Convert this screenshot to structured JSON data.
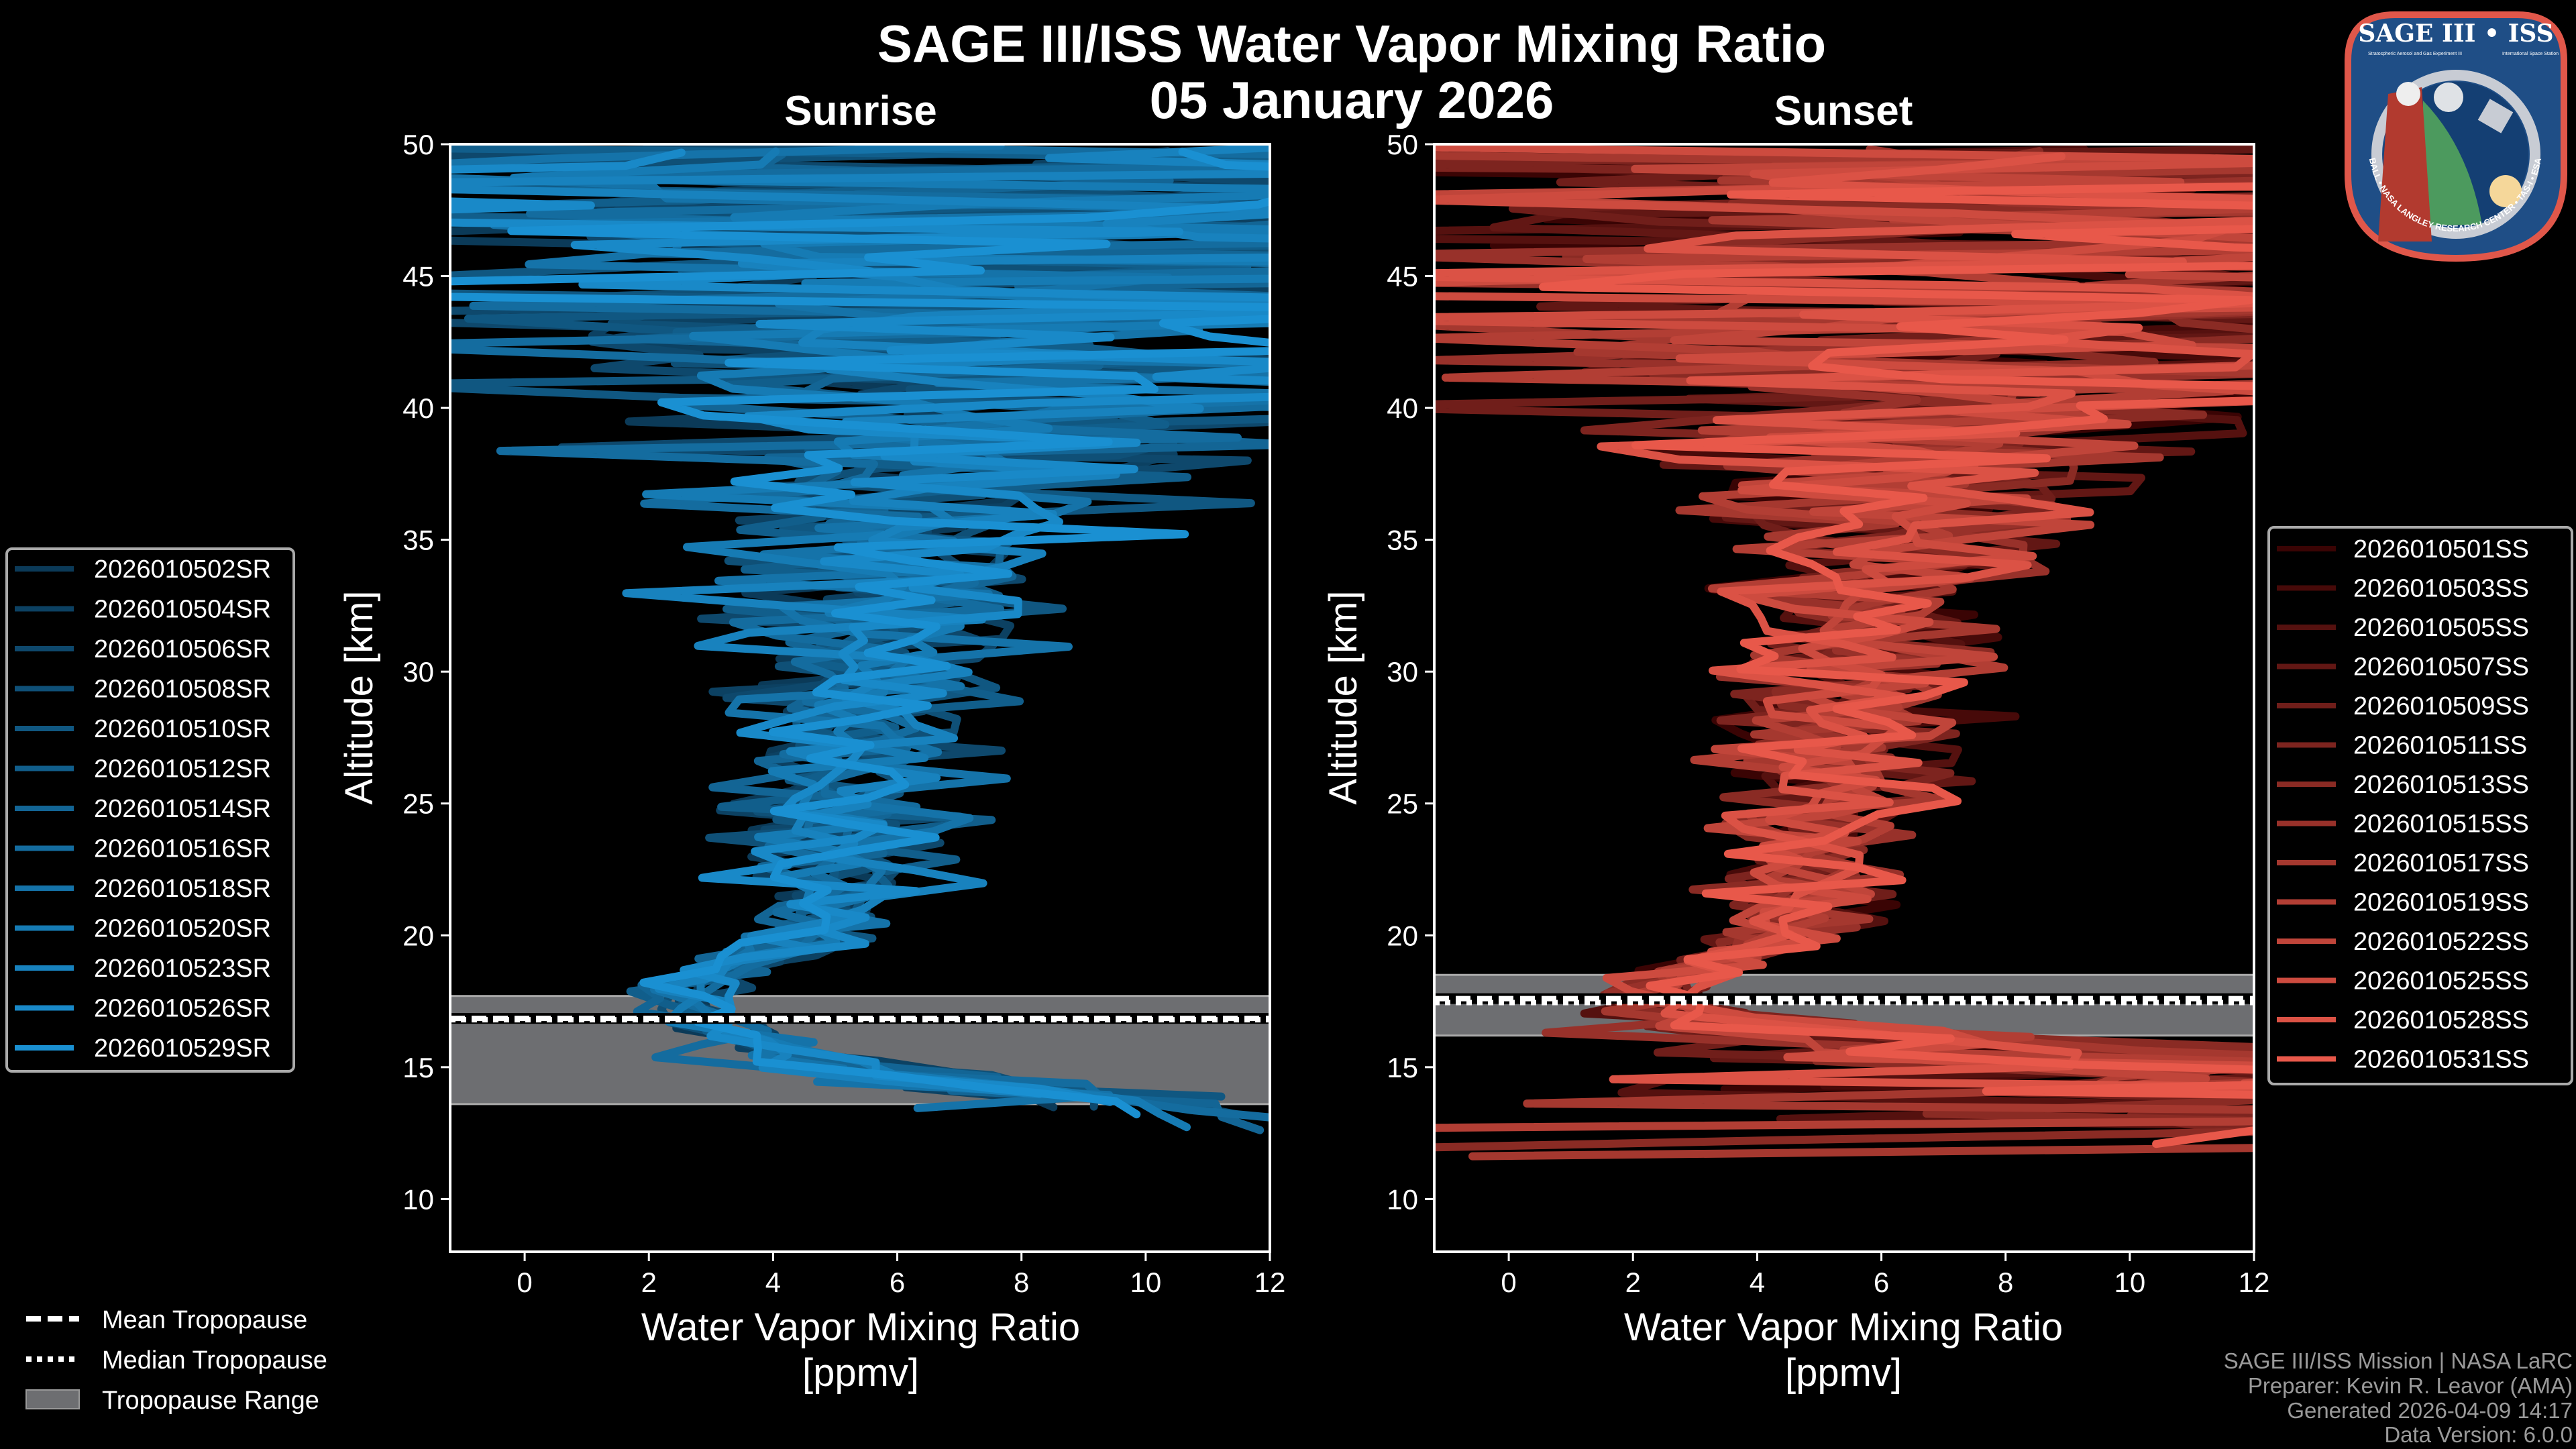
{
  "title": "SAGE III/ISS Water Vapor Mixing Ratio",
  "date": "05 January 2026",
  "chart_data": [
    {
      "type": "line",
      "panel_title": "Sunrise",
      "xlabel": "Water Vapor Mixing Ratio",
      "xlabel_units": "[ppmv]",
      "ylabel": "Altitude [km]",
      "xlim": [
        -1.2,
        12
      ],
      "ylim": [
        8,
        50
      ],
      "xticks": [
        0,
        2,
        4,
        6,
        8,
        10,
        12
      ],
      "yticks": [
        10,
        15,
        20,
        25,
        30,
        35,
        40,
        45,
        50
      ],
      "tropopause": {
        "mean": 16.85,
        "median": 16.8,
        "min": 13.6,
        "max": 17.7
      },
      "color_range": [
        "#0b3a58",
        "#1a90d2"
      ],
      "legend_position": "left",
      "series": [
        "2026010502SR",
        "2026010504SR",
        "2026010506SR",
        "2026010508SR",
        "2026010510SR",
        "2026010512SR",
        "2026010514SR",
        "2026010516SR",
        "2026010518SR",
        "2026010520SR",
        "2026010523SR",
        "2026010526SR",
        "2026010529SR"
      ],
      "profile_altitude_km": [
        12,
        13,
        14,
        15,
        16,
        17,
        18,
        19,
        20,
        22,
        24,
        26,
        28,
        30,
        32,
        34,
        36,
        38,
        40,
        42,
        44,
        46,
        48,
        50
      ],
      "profile_mean_ppmv": [
        13,
        11,
        8,
        5,
        3.5,
        2.8,
        2.6,
        3.6,
        4.6,
        5,
        5,
        5.1,
        5.3,
        5.5,
        5.8,
        6,
        6.3,
        6.6,
        7,
        7,
        7,
        7,
        7,
        7
      ],
      "profile_spread_ppmv": [
        1,
        1,
        1,
        0.8,
        0.5,
        0.4,
        0.4,
        0.5,
        0.6,
        0.8,
        0.9,
        1,
        1.1,
        1.2,
        1.4,
        1.6,
        1.9,
        2.5,
        3.5,
        4.5,
        5.5,
        6,
        6,
        6
      ],
      "profile_bottom_km": [
        12.5,
        14
      ]
    },
    {
      "type": "line",
      "panel_title": "Sunset",
      "xlabel": "Water Vapor Mixing Ratio",
      "xlabel_units": "[ppmv]",
      "ylabel": "Altitude [km]",
      "xlim": [
        -1.2,
        12
      ],
      "ylim": [
        8,
        50
      ],
      "xticks": [
        0,
        2,
        4,
        6,
        8,
        10,
        12
      ],
      "yticks": [
        10,
        15,
        20,
        25,
        30,
        35,
        40,
        45,
        50
      ],
      "tropopause": {
        "mean": 17.6,
        "median": 17.45,
        "min": 16.2,
        "max": 18.5
      },
      "color_range": [
        "#3a0404",
        "#e8584a"
      ],
      "legend_position": "right",
      "series": [
        "2026010501SS",
        "2026010503SS",
        "2026010505SS",
        "2026010507SS",
        "2026010509SS",
        "2026010511SS",
        "2026010513SS",
        "2026010515SS",
        "2026010517SS",
        "2026010519SS",
        "2026010522SS",
        "2026010525SS",
        "2026010528SS",
        "2026010531SS"
      ],
      "profile_altitude_km": [
        12,
        13,
        14,
        15,
        16,
        17,
        18,
        19,
        20,
        22,
        24,
        26,
        28,
        30,
        32,
        34,
        36,
        38,
        40,
        42,
        44,
        46,
        48,
        50
      ],
      "profile_mean_ppmv": [
        14,
        14,
        12,
        9,
        6,
        3,
        2.5,
        3.5,
        4.5,
        4.8,
        5,
        5.2,
        5.4,
        5.6,
        5.8,
        6,
        6.3,
        6.8,
        7,
        7.5,
        8,
        8,
        8,
        8
      ],
      "profile_spread_ppmv": [
        8,
        8,
        6,
        4,
        2,
        0.8,
        0.5,
        0.6,
        0.6,
        0.7,
        0.8,
        0.9,
        1,
        1.1,
        1.2,
        1.4,
        1.8,
        2.5,
        3.5,
        5,
        6,
        7,
        7,
        7
      ],
      "profile_bottom_km": [
        11.5,
        15
      ]
    }
  ],
  "tropopause_legend": {
    "mean": "Mean Tropopause",
    "median": "Median Tropopause",
    "range": "Tropopause Range",
    "range_color": "#6d6e71"
  },
  "footer": {
    "line1": "SAGE III/ISS Mission | NASA LaRC",
    "line2": "Preparer: Kevin R. Leavor (AMA)",
    "line3": "Generated 2026-04-09 14:17",
    "line4": "Data Version: 6.0.0"
  },
  "logo": {
    "title": "SAGE III • ISS",
    "subtitle_left": "Stratospheric Aerosol and Gas Experiment III",
    "subtitle_right": "International Space Station",
    "ring_text": "BALL • NASA LANGLEY RESEARCH CENTER • TAS-I • ESA"
  }
}
